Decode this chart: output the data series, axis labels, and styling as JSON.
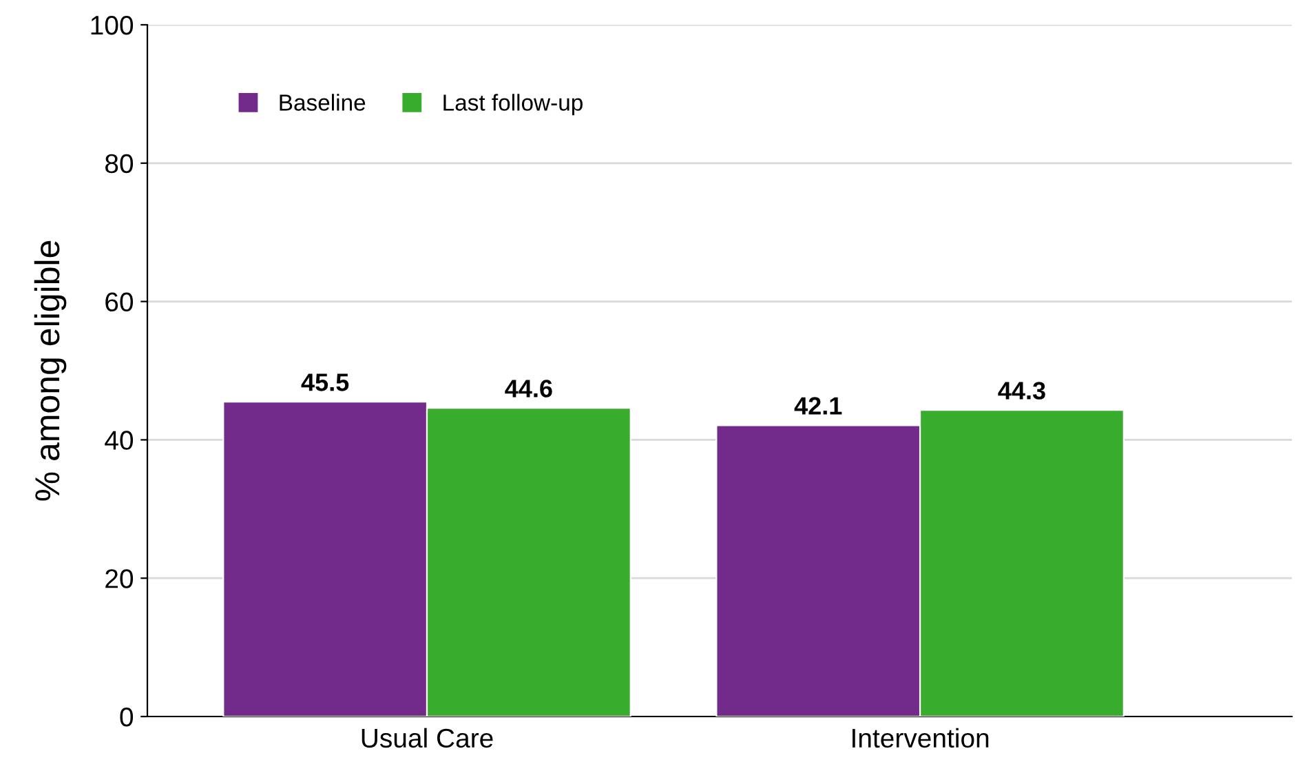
{
  "chart_data": {
    "type": "bar",
    "ylabel": "% among eligible",
    "categories": [
      "Usual Care",
      "Intervention"
    ],
    "series": [
      {
        "name": "Baseline",
        "color": "#722b8a",
        "values": [
          45.5,
          42.1
        ]
      },
      {
        "name": "Last follow-up",
        "color": "#38ac2c",
        "values": [
          44.6,
          44.3
        ]
      }
    ],
    "ylim": [
      0,
      100
    ],
    "yticks": [
      0,
      20,
      40,
      60,
      80,
      100
    ],
    "grid": "y",
    "legend": "top left",
    "data_labels": true
  }
}
